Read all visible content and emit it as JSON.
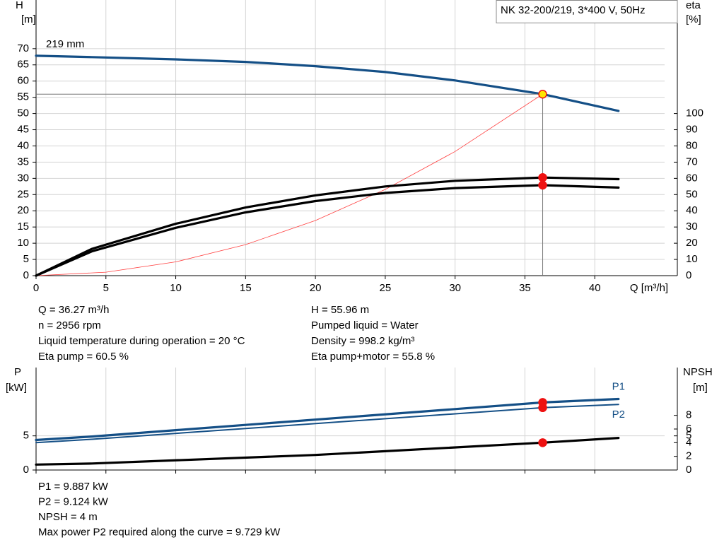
{
  "chart_data": [
    {
      "type": "line",
      "title": "NK 32-200/219, 3*400 V, 50Hz",
      "y_label": "H",
      "y_unit": "[m]",
      "y2_label": "eta",
      "y2_unit": "[%]",
      "x_label": "Q [m³/h]",
      "xlim": [
        0,
        45
      ],
      "xticks": [
        0,
        5,
        10,
        15,
        20,
        25,
        30,
        35,
        40
      ],
      "ylim": [
        0,
        85
      ],
      "yticks": [
        0,
        5,
        10,
        15,
        20,
        25,
        30,
        35,
        40,
        45,
        50,
        55,
        60,
        65,
        70
      ],
      "y2lim": [
        0,
        170
      ],
      "y2ticks": [
        0,
        10,
        20,
        30,
        40,
        50,
        60,
        70,
        80,
        90,
        100
      ],
      "grid": true,
      "duty_x": 36.27,
      "series": [
        {
          "name": "219 mm",
          "color": "#144f86",
          "style": "thick",
          "axis": "y",
          "marker": "#ffe600",
          "duty_lines": true,
          "x": [
            0,
            4,
            10,
            15,
            20,
            25,
            30,
            36.27,
            41.7
          ],
          "values": [
            67.8,
            67.4,
            66.7,
            65.9,
            64.6,
            62.8,
            60.2,
            55.96,
            50.8
          ]
        },
        {
          "color": "#ff4040",
          "style": "thin",
          "axis": "y",
          "x": [
            0,
            5,
            10,
            15,
            20,
            25,
            30,
            36.27
          ],
          "values": [
            0,
            1.06,
            4.25,
            9.57,
            17.0,
            26.6,
            38.3,
            55.96
          ]
        },
        {
          "color": "#000000",
          "style": "thick",
          "axis": "y2",
          "marker": "#ee1111",
          "x": [
            0,
            4,
            10,
            15,
            20,
            25,
            30,
            36.27,
            41.7
          ],
          "values": [
            0,
            16.5,
            32,
            42,
            49.5,
            55,
            58.5,
            60.5,
            59.5
          ]
        },
        {
          "color": "#000000",
          "style": "thick",
          "axis": "y2",
          "marker": "#ee1111",
          "x": [
            0,
            4,
            10,
            15,
            20,
            25,
            30,
            36.27,
            41.7
          ],
          "values": [
            0,
            15,
            29.5,
            39,
            46,
            51,
            54,
            55.8,
            54.3
          ]
        }
      ],
      "info_left": [
        "Q = 36.27 m³/h",
        "n = 2956 rpm",
        "Liquid temperature during operation = 20 °C",
        "Eta pump = 60.5 %"
      ],
      "info_right": [
        "H = 55.96 m",
        "Pumped liquid = Water",
        "Density = 998.2 kg/m³",
        "Eta pump+motor = 55.8 %"
      ]
    },
    {
      "type": "line",
      "y_label": "P",
      "y_unit": "[kW]",
      "y2_label": "NPSH",
      "y2_unit": "[m]",
      "xlim": [
        0,
        45
      ],
      "xticks": [
        0,
        5,
        10,
        15,
        20,
        25,
        30,
        35,
        40
      ],
      "xtick_labels": false,
      "ylim": [
        0,
        15
      ],
      "yticks": [
        0,
        5
      ],
      "y2lim": [
        0,
        15
      ],
      "y2ticks": [
        0,
        2,
        4,
        5,
        6,
        8
      ],
      "grid": true,
      "duty_x": 36.27,
      "series": [
        {
          "name": "P1",
          "color": "#144f86",
          "style": "thick",
          "axis": "y",
          "marker": "#ee1111",
          "x": [
            0,
            4,
            36.27,
            41.7
          ],
          "values": [
            4.4,
            4.9,
            9.887,
            10.4
          ]
        },
        {
          "name": "P2",
          "color": "#144f86",
          "style": "medium",
          "axis": "y",
          "marker": "#ee1111",
          "x": [
            0,
            4,
            36.27,
            41.7
          ],
          "values": [
            4.0,
            4.5,
            9.124,
            9.6
          ]
        },
        {
          "color": "#000000",
          "style": "thick",
          "axis": "y2",
          "marker": "#ee1111",
          "x": [
            0,
            4,
            20,
            36.27,
            41.7
          ],
          "values": [
            0.8,
            0.95,
            2.2,
            4,
            4.7
          ]
        }
      ],
      "info_left": [
        "P1 = 9.887 kW",
        "P2 = 9.124 kW",
        "NPSH = 4 m",
        "Max power P2 required along the curve = 9.729 kW"
      ]
    }
  ]
}
